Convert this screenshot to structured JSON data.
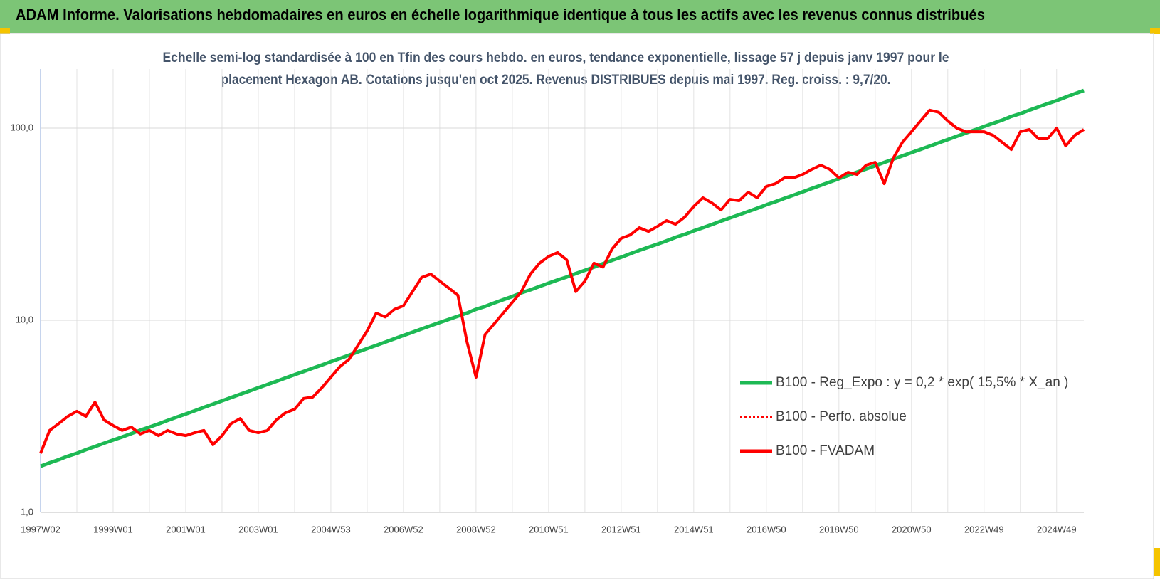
{
  "chart_data": {
    "type": "line",
    "title": "ADAM Informe. Valorisations hebdomadaires en euros en échelle logarithmique identique à tous les actifs avec les revenus connus distribués",
    "subtitle": [
      "Echelle semi-log standardisée à 100 en Tfin des cours hebdo. en euros, tendance exponentielle, lissage 57 j depuis janv 1997 pour le",
      "placement Hexagon AB. Cotations jusqu'en oct 2025. Revenus DISTRIBUES depuis mai 1997. Reg. croiss. : 9,7/20."
    ],
    "log_scale": true,
    "ylim": [
      1,
      203
    ],
    "yticks": [
      {
        "value": 1,
        "label": "1,0"
      },
      {
        "value": 10,
        "label": "10,0"
      },
      {
        "value": 100,
        "label": "100,0"
      }
    ],
    "grid": true,
    "legend": "right",
    "categories": [
      "1997W02",
      null,
      null,
      null,
      null,
      null,
      null,
      null,
      "1999W01",
      null,
      null,
      null,
      null,
      null,
      null,
      null,
      "2001W01",
      null,
      null,
      null,
      null,
      null,
      null,
      null,
      "2003W01",
      null,
      null,
      null,
      null,
      null,
      null,
      null,
      "2004W53",
      null,
      null,
      null,
      null,
      null,
      null,
      null,
      "2006W52",
      null,
      null,
      null,
      null,
      null,
      null,
      null,
      "2008W52",
      null,
      null,
      null,
      null,
      null,
      null,
      null,
      "2010W51",
      null,
      null,
      null,
      null,
      null,
      null,
      null,
      "2012W51",
      null,
      null,
      null,
      null,
      null,
      null,
      null,
      "2014W51",
      null,
      null,
      null,
      null,
      null,
      null,
      null,
      "2016W50",
      null,
      null,
      null,
      null,
      null,
      null,
      null,
      "2018W50",
      null,
      null,
      null,
      null,
      null,
      null,
      null,
      "2020W50",
      null,
      null,
      null,
      null,
      null,
      null,
      null,
      "2022W49",
      null,
      null,
      null,
      null,
      null,
      null,
      null,
      "2024W49",
      null,
      null,
      null
    ],
    "series": [
      {
        "name": "B100 - Reg_Expo : y = 0,2 * exp( 15,5% *  X_an )",
        "color": "#1db954",
        "dash": "solid",
        "values": [
          1.74,
          1.81,
          1.88,
          1.96,
          2.03,
          2.12,
          2.2,
          2.29,
          2.38,
          2.47,
          2.57,
          2.68,
          2.78,
          2.89,
          3.01,
          3.13,
          3.25,
          3.38,
          3.52,
          3.66,
          3.81,
          3.96,
          4.12,
          4.28,
          4.45,
          4.63,
          4.81,
          5.01,
          5.21,
          5.41,
          5.63,
          5.85,
          6.09,
          6.33,
          6.58,
          6.85,
          7.12,
          7.4,
          7.7,
          8.01,
          8.33,
          8.66,
          9.01,
          9.37,
          9.74,
          10.1,
          10.5,
          10.9,
          11.4,
          11.8,
          12.3,
          12.8,
          13.3,
          13.9,
          14.4,
          15.0,
          15.6,
          16.2,
          16.8,
          17.5,
          18.2,
          18.9,
          19.7,
          20.5,
          21.3,
          22.2,
          23.1,
          24.0,
          24.9,
          25.9,
          27.0,
          28.0,
          29.2,
          30.3,
          31.5,
          32.8,
          34.1,
          35.4,
          36.8,
          38.3,
          39.9,
          41.4,
          43.1,
          44.8,
          46.6,
          48.5,
          50.4,
          52.4,
          54.5,
          56.7,
          59.0,
          61.3,
          63.7,
          66.3,
          68.9,
          71.7,
          74.6,
          77.5,
          80.6,
          83.8,
          87.2,
          90.7,
          94.3,
          98.0,
          102,
          106,
          110,
          115,
          119,
          124,
          129,
          134,
          139,
          145,
          151,
          157
        ]
      },
      {
        "name": "B100 - Perfo. absolue",
        "color": "#ff0000",
        "dash": "dotted"
      },
      {
        "name": "B100 - FVADAM",
        "color": "#ff0000",
        "dash": "solid",
        "values": [
          2.03,
          2.67,
          2.9,
          3.16,
          3.36,
          3.16,
          3.75,
          3.03,
          2.83,
          2.67,
          2.78,
          2.56,
          2.67,
          2.51,
          2.67,
          2.56,
          2.51,
          2.6,
          2.67,
          2.25,
          2.51,
          2.9,
          3.08,
          2.67,
          2.6,
          2.67,
          3.03,
          3.3,
          3.44,
          3.92,
          3.98,
          4.45,
          5.05,
          5.74,
          6.26,
          7.42,
          8.8,
          10.9,
          10.4,
          11.4,
          11.9,
          14.1,
          16.7,
          17.4,
          16.0,
          14.7,
          13.5,
          7.74,
          5.05,
          8.43,
          9.58,
          10.9,
          12.4,
          14.1,
          17.4,
          19.8,
          21.5,
          22.5,
          20.6,
          14.1,
          16.0,
          19.8,
          18.9,
          23.5,
          26.7,
          27.8,
          30.3,
          29.0,
          30.8,
          33.0,
          31.6,
          34.4,
          39.1,
          43.4,
          40.8,
          37.5,
          42.6,
          41.9,
          46.4,
          43.4,
          49.7,
          51.4,
          55.1,
          55.1,
          57.4,
          61.0,
          64.2,
          61.0,
          55.1,
          58.9,
          57.4,
          64.2,
          66.4,
          51.4,
          69.9,
          84.3,
          95.8,
          109,
          124,
          121,
          109,
          100,
          95.8,
          95.8,
          95.8,
          91.8,
          84.3,
          77.4,
          95.8,
          98.3,
          88.0,
          88.0,
          100,
          80.8,
          91.8,
          98.3
        ]
      }
    ]
  }
}
